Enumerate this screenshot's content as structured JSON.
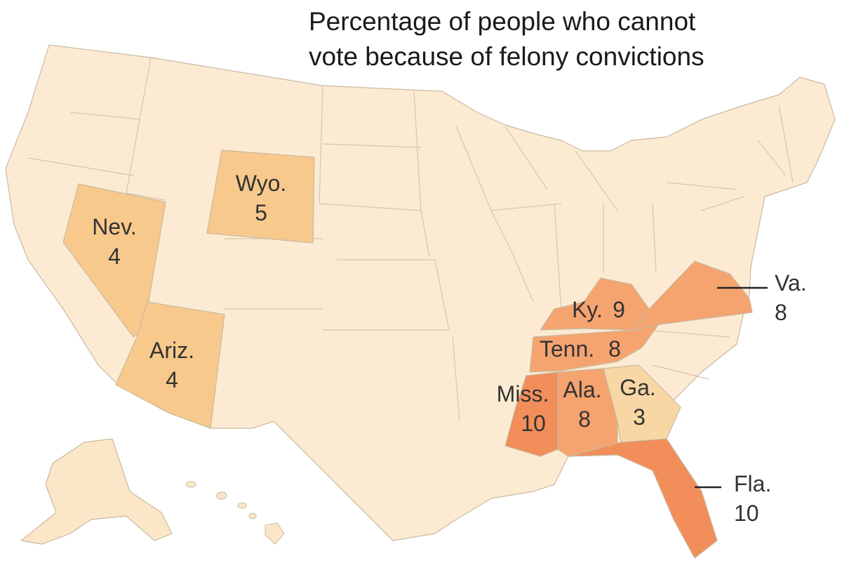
{
  "title": {
    "line1": "Percentage of people who cannot",
    "line2": "vote because of felony convictions"
  },
  "colors": {
    "lowest": "#fdf0dc",
    "low": "#fbe6c8",
    "light": "#fadcb2",
    "mid": "#f7c98c",
    "ga": "#f8d7a4",
    "high": "#f5a470",
    "higher": "#f28e5a",
    "border": "#c9b9a0"
  },
  "labels": {
    "wyo": {
      "name": "Wyo.",
      "value": "5"
    },
    "nev": {
      "name": "Nev.",
      "value": "4"
    },
    "ariz": {
      "name": "Ariz.",
      "value": "4"
    },
    "ky": {
      "name": "Ky.",
      "value": "9"
    },
    "tenn": {
      "name": "Tenn.",
      "value": "8"
    },
    "miss": {
      "name": "Miss.",
      "value": "10"
    },
    "ala": {
      "name": "Ala.",
      "value": "8"
    },
    "ga": {
      "name": "Ga.",
      "value": "3"
    },
    "va": {
      "name": "Va.",
      "value": "8"
    },
    "fla": {
      "name": "Fla.",
      "value": "10"
    }
  }
}
